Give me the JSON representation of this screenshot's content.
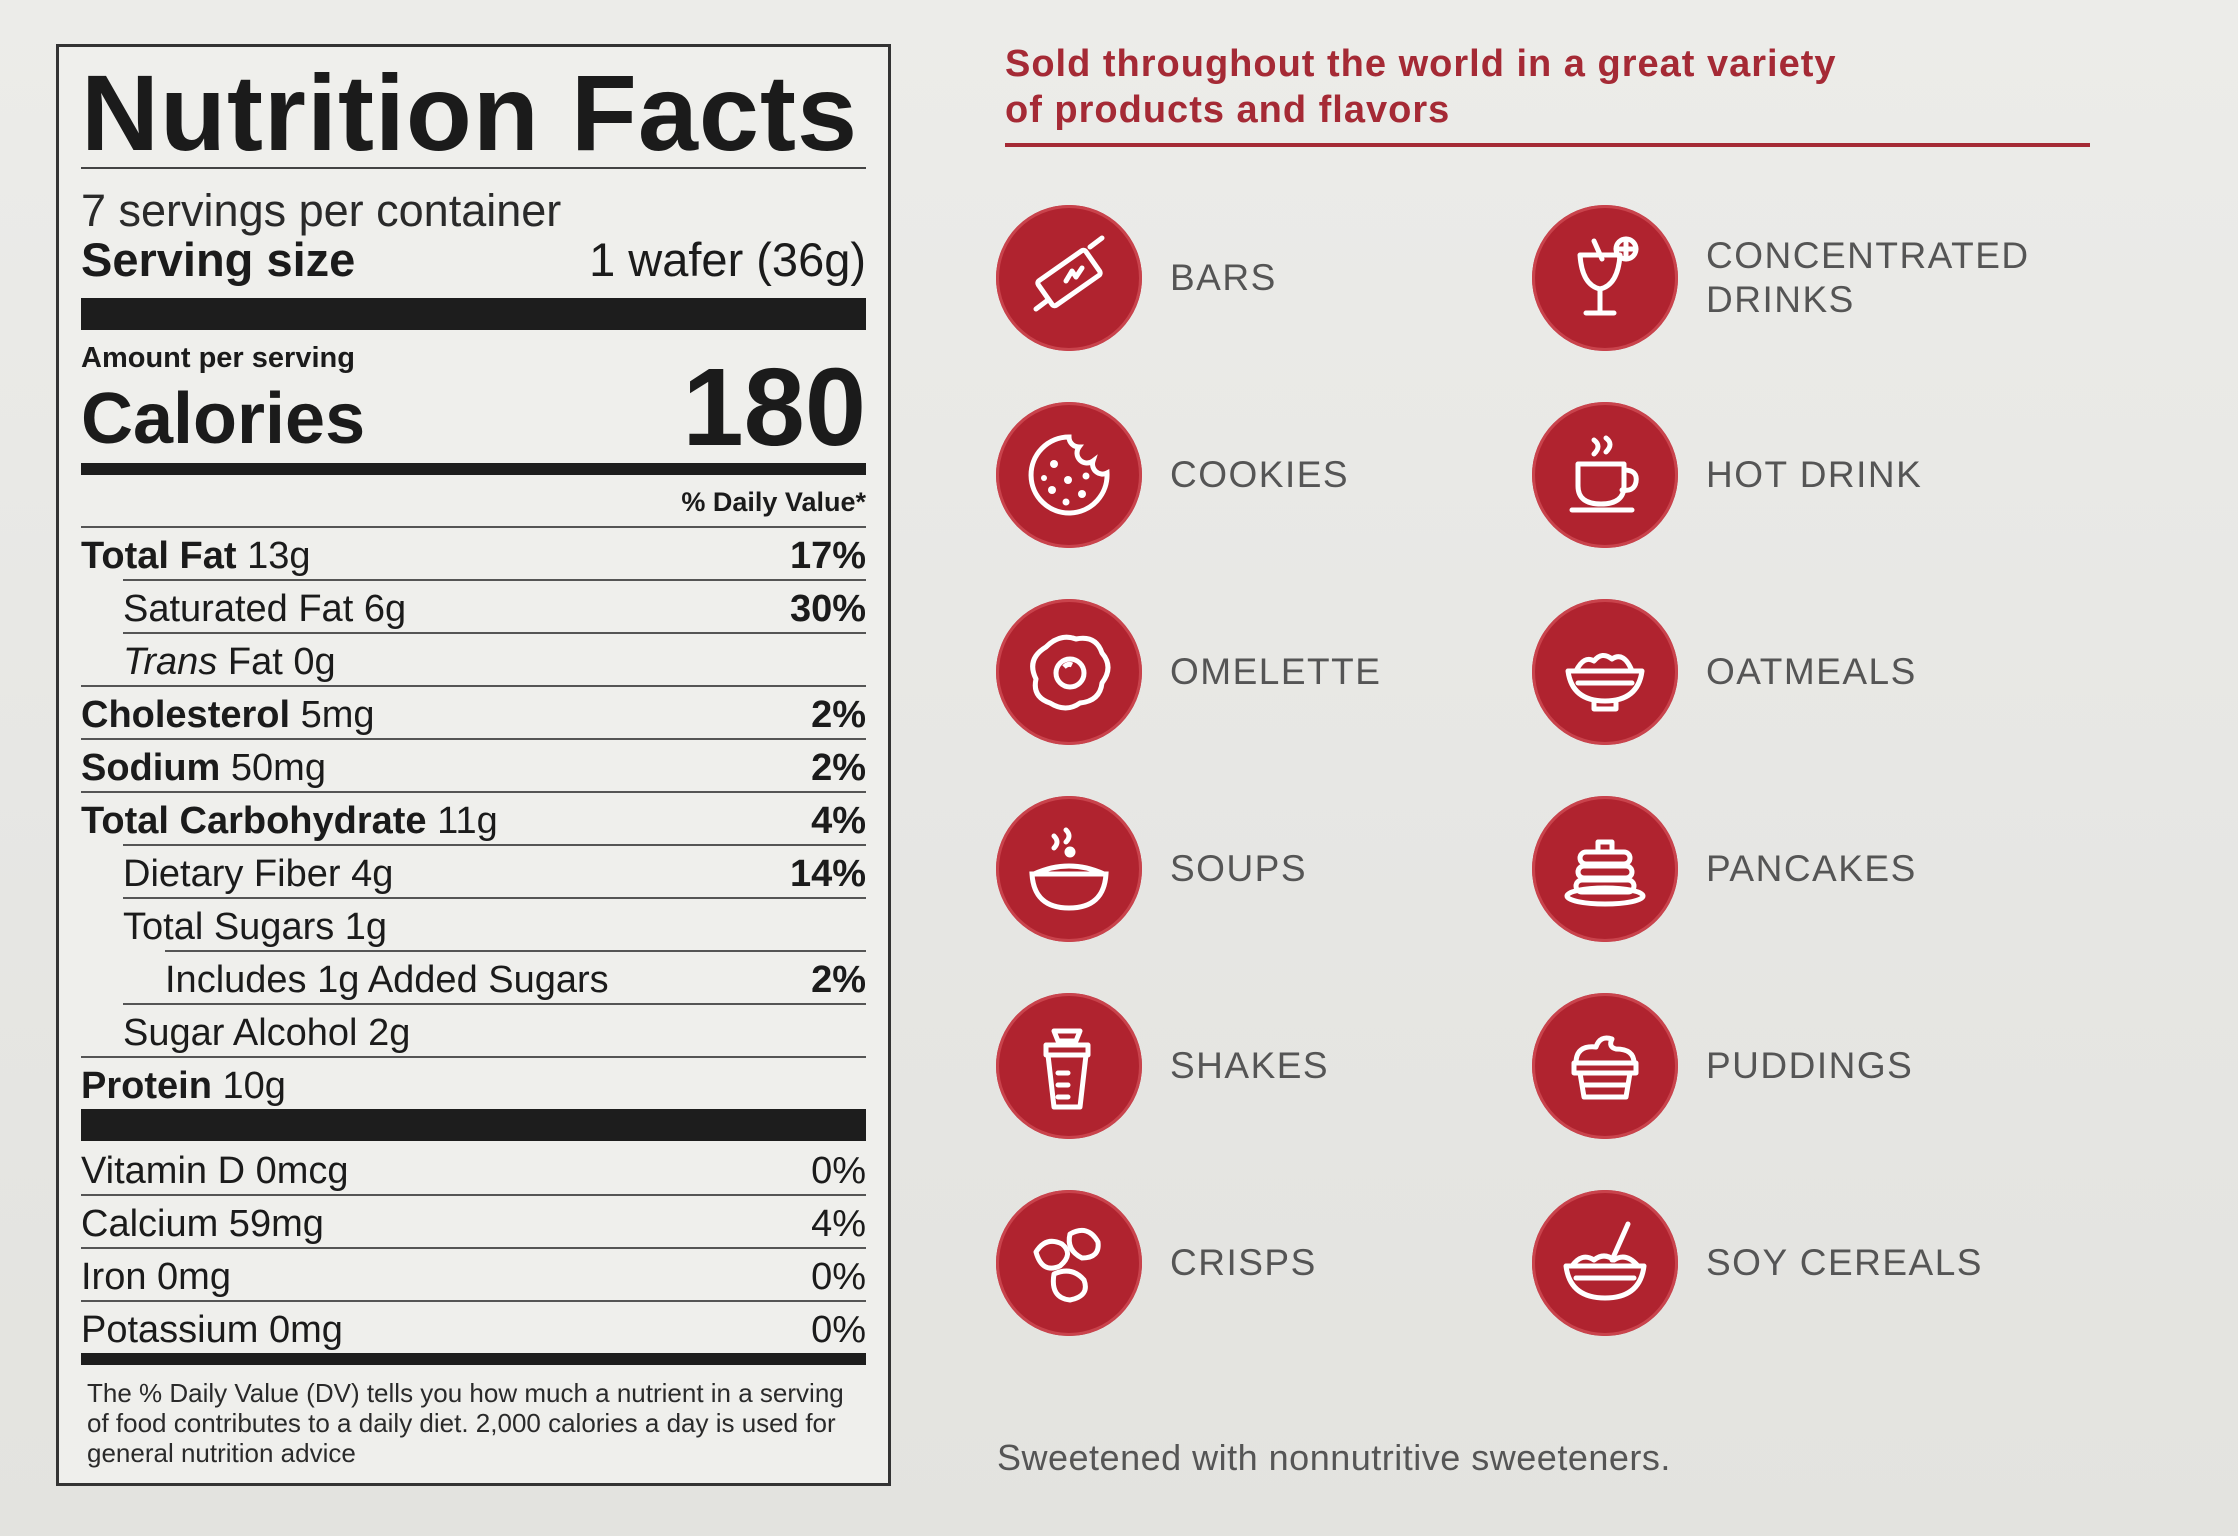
{
  "nutrition": {
    "title": "Nutrition Facts",
    "servings": "7 servings per container",
    "serving_size_label": "Serving size",
    "serving_size_value": "1 wafer (36g)",
    "amount_per_serving": "Amount per serving",
    "calories_label": "Calories",
    "calories_value": "180",
    "dv_header": "% Daily Value*",
    "rows": [
      {
        "name": "Total Fat",
        "amount": "13g",
        "pct": "17%"
      },
      {
        "name": "Saturated Fat",
        "amount": "6g",
        "pct": "30%"
      },
      {
        "name": "Trans",
        "name2": "Fat",
        "amount": "0g",
        "pct": ""
      },
      {
        "name": "Cholesterol",
        "amount": "5mg",
        "pct": "2%"
      },
      {
        "name": "Sodium",
        "amount": "50mg",
        "pct": "2%"
      },
      {
        "name": "Total Carbohydrate",
        "amount": "11g",
        "pct": "4%"
      },
      {
        "name": "Dietary Fiber",
        "amount": "4g",
        "pct": "14%"
      },
      {
        "name": "Total Sugars",
        "amount": "1g",
        "pct": ""
      },
      {
        "name": "Includes 1g Added Sugars",
        "amount": "",
        "pct": "2%"
      },
      {
        "name": "Sugar Alcohol",
        "amount": "2g",
        "pct": ""
      },
      {
        "name": "Protein",
        "amount": "10g",
        "pct": ""
      }
    ],
    "vitamins": [
      {
        "name": "Vitamin D 0mcg",
        "pct": "0%"
      },
      {
        "name": "Calcium 59mg",
        "pct": "4%"
      },
      {
        "name": "Iron 0mg",
        "pct": "0%"
      },
      {
        "name": "Potassium 0mg",
        "pct": "0%"
      }
    ],
    "footnote": "The % Daily Value (DV) tells you how much a nutrient in a serving of food contributes to a daily diet. 2,000 calories a day is used for general nutrition advice"
  },
  "products": {
    "headline_line1": "Sold throughout the world in a great variety",
    "headline_line2": "of products and flavors",
    "accent_color": "#b0232f",
    "items": [
      {
        "label": "BARS",
        "icon": "bar-icon"
      },
      {
        "label": "CONCENTRATED",
        "label2": "DRINKS",
        "icon": "cocktail-icon"
      },
      {
        "label": "COOKIES",
        "icon": "cookie-icon"
      },
      {
        "label": "HOT DRINK",
        "icon": "hot-cup-icon"
      },
      {
        "label": "OMELETTE",
        "icon": "egg-icon"
      },
      {
        "label": "OATMEALS",
        "icon": "oatmeal-bowl-icon"
      },
      {
        "label": "SOUPS",
        "icon": "soup-bowl-icon"
      },
      {
        "label": "PANCAKES",
        "icon": "pancakes-icon"
      },
      {
        "label": "SHAKES",
        "icon": "shaker-icon"
      },
      {
        "label": "PUDDINGS",
        "icon": "pudding-icon"
      },
      {
        "label": "CRISPS",
        "icon": "crisps-icon"
      },
      {
        "label": "SOY CEREALS",
        "icon": "cereal-bowl-icon"
      }
    ],
    "note": "Sweetened with nonnutritive sweeteners."
  }
}
